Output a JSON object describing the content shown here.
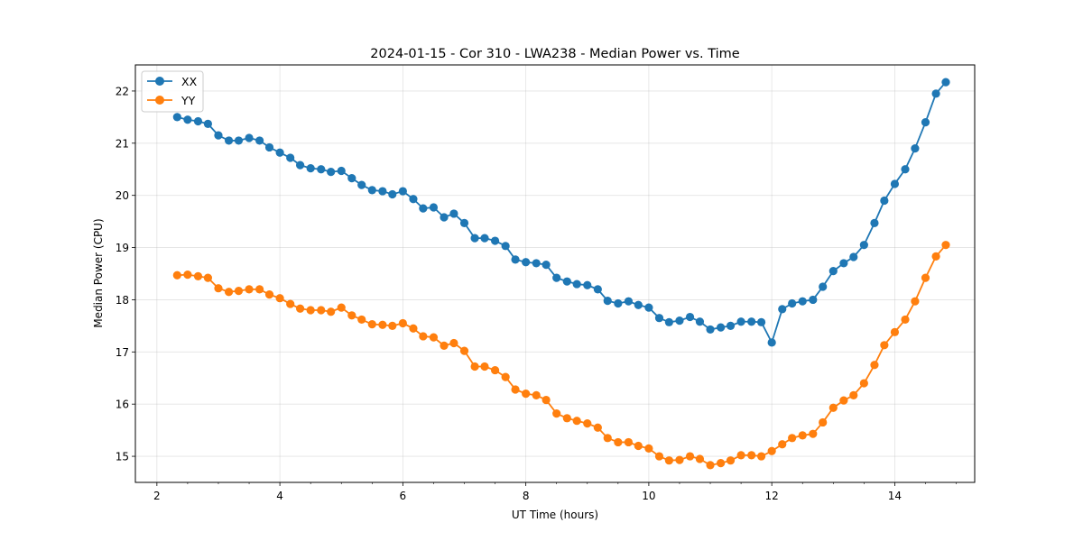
{
  "chart_data": {
    "type": "line",
    "title": "2024-01-15 - Cor 310 - LWA238 - Median Power vs. Time",
    "xlabel": "UT Time (hours)",
    "ylabel": "Median Power (CPU)",
    "xlim": [
      1.65,
      15.3
    ],
    "ylim": [
      14.5,
      22.5
    ],
    "xticks": [
      2,
      4,
      6,
      8,
      10,
      12,
      14
    ],
    "yticks": [
      15,
      16,
      17,
      18,
      19,
      20,
      21,
      22
    ],
    "grid": true,
    "legend_position": "top-left",
    "x": [
      2.33,
      2.5,
      2.67,
      2.83,
      3.0,
      3.17,
      3.33,
      3.5,
      3.67,
      3.83,
      4.0,
      4.17,
      4.33,
      4.5,
      4.67,
      4.83,
      5.0,
      5.17,
      5.33,
      5.5,
      5.67,
      5.83,
      6.0,
      6.17,
      6.33,
      6.5,
      6.67,
      6.83,
      7.0,
      7.17,
      7.33,
      7.5,
      7.67,
      7.83,
      8.0,
      8.17,
      8.33,
      8.5,
      8.67,
      8.83,
      9.0,
      9.17,
      9.33,
      9.5,
      9.67,
      9.83,
      10.0,
      10.17,
      10.33,
      10.5,
      10.67,
      10.83,
      11.0,
      11.17,
      11.33,
      11.5,
      11.67,
      11.83,
      12.0,
      12.17,
      12.33,
      12.5,
      12.67,
      12.83,
      13.0,
      13.17,
      13.33,
      13.5,
      13.67,
      13.83,
      14.0,
      14.17,
      14.33,
      14.5,
      14.67,
      14.83
    ],
    "series": [
      {
        "name": "XX",
        "color": "#1f77b4",
        "values": [
          21.5,
          21.45,
          21.42,
          21.37,
          21.15,
          21.05,
          21.05,
          21.1,
          21.05,
          20.92,
          20.82,
          20.72,
          20.58,
          20.52,
          20.5,
          20.45,
          20.47,
          20.33,
          20.2,
          20.1,
          20.08,
          20.02,
          20.08,
          19.93,
          19.75,
          19.77,
          19.58,
          19.65,
          19.47,
          19.18,
          19.18,
          19.13,
          19.03,
          18.77,
          18.72,
          18.7,
          18.67,
          18.42,
          18.35,
          18.3,
          18.28,
          18.2,
          17.98,
          17.93,
          17.97,
          17.9,
          17.85,
          17.65,
          17.57,
          17.6,
          17.67,
          17.58,
          17.43,
          17.47,
          17.5,
          17.58,
          17.58,
          17.57,
          17.18,
          17.82,
          17.93,
          17.97,
          18.0,
          18.25,
          18.55,
          18.7,
          18.82,
          19.05,
          19.47,
          19.9,
          20.22,
          20.5,
          20.9,
          21.4,
          21.95,
          22.17
        ]
      },
      {
        "name": "YY",
        "color": "#ff7f0e",
        "values": [
          18.47,
          18.48,
          18.45,
          18.42,
          18.22,
          18.15,
          18.17,
          18.2,
          18.2,
          18.1,
          18.03,
          17.92,
          17.83,
          17.8,
          17.8,
          17.77,
          17.85,
          17.7,
          17.62,
          17.53,
          17.52,
          17.5,
          17.55,
          17.45,
          17.3,
          17.28,
          17.12,
          17.17,
          17.02,
          16.72,
          16.72,
          16.65,
          16.52,
          16.28,
          16.2,
          16.17,
          16.08,
          15.82,
          15.73,
          15.68,
          15.63,
          15.55,
          15.35,
          15.27,
          15.27,
          15.2,
          15.15,
          15.0,
          14.92,
          14.93,
          15.0,
          14.95,
          14.83,
          14.87,
          14.92,
          15.02,
          15.02,
          15.0,
          15.1,
          15.23,
          15.35,
          15.4,
          15.43,
          15.65,
          15.93,
          16.07,
          16.17,
          16.4,
          16.75,
          17.13,
          17.38,
          17.62,
          17.97,
          18.42,
          18.83,
          19.05
        ]
      }
    ]
  }
}
